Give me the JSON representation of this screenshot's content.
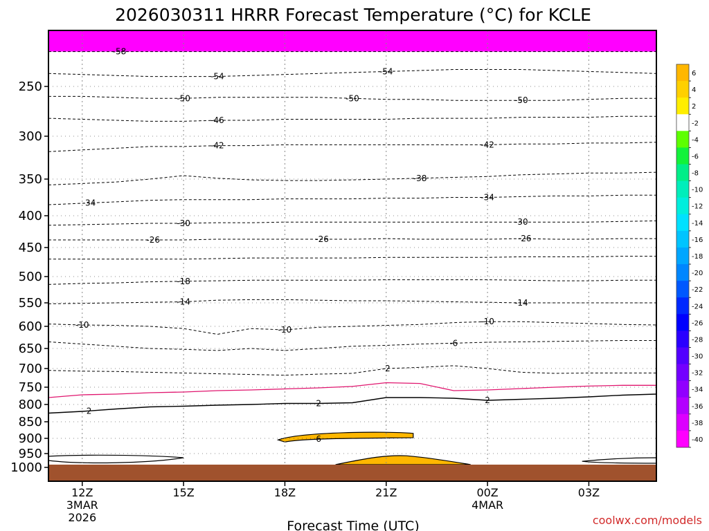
{
  "chart_data": {
    "type": "heatmap",
    "title": "2026030311 HRRR Forecast Temperature (°C) for KCLE",
    "xlabel": "Forecast Time (UTC)",
    "credit": "coolwx.com/models",
    "x_ticks": [
      {
        "hour": 0,
        "label": "12Z",
        "sub1": "3MAR",
        "sub2": "2026"
      },
      {
        "hour": 3,
        "label": "15Z",
        "sub1": "",
        "sub2": ""
      },
      {
        "hour": 6,
        "label": "18Z",
        "sub1": "",
        "sub2": ""
      },
      {
        "hour": 9,
        "label": "21Z",
        "sub1": "",
        "sub2": ""
      },
      {
        "hour": 12,
        "label": "00Z",
        "sub1": "4MAR",
        "sub2": ""
      },
      {
        "hour": 15,
        "label": "03Z",
        "sub1": "",
        "sub2": ""
      }
    ],
    "xlim": [
      -1,
      17
    ],
    "y_ticks": [
      250,
      300,
      350,
      400,
      450,
      500,
      550,
      600,
      650,
      700,
      750,
      800,
      850,
      900,
      950,
      1000
    ],
    "y_unit": "hPa",
    "colorbar": {
      "labels": [
        "6",
        "4",
        "2",
        "-2",
        "-4",
        "-6",
        "-8",
        "-10",
        "-12",
        "-14",
        "-16",
        "-18",
        "-20",
        "-22",
        "-24",
        "-26",
        "-28",
        "-30",
        "-32",
        "-34",
        "-36",
        "-38",
        "-40"
      ],
      "colors": [
        "#ffb700",
        "#ffd000",
        "#ffee00",
        "#ffffff",
        "#5dff00",
        "#12f23a",
        "#00ee88",
        "#00eebb",
        "#00eedd",
        "#00e1ff",
        "#00c4ff",
        "#00a6ff",
        "#0086ff",
        "#0058ff",
        "#0028ff",
        "#0000ff",
        "#2a00ff",
        "#5200ff",
        "#7300ff",
        "#9100ff",
        "#b300ff",
        "#dc00ff",
        "#ff00ff"
      ]
    },
    "contours": [
      {
        "value": -58,
        "pressures": [
          215,
          215,
          215,
          215,
          215,
          215,
          215,
          215,
          215,
          215,
          215,
          215,
          215,
          215,
          215,
          215,
          215,
          215,
          215
        ],
        "label_hours": [
          1.1
        ]
      },
      {
        "value": -54,
        "pressures": [
          237,
          238,
          239,
          240,
          240,
          240,
          239,
          238,
          237,
          236,
          235,
          234,
          233,
          233,
          233,
          234,
          235,
          236,
          237
        ],
        "label_hours": [
          4,
          9
        ]
      },
      {
        "value": -50,
        "pressures": [
          260,
          260,
          261,
          262,
          262,
          261,
          261,
          261,
          261,
          262,
          263,
          263,
          264,
          264,
          264,
          264,
          263,
          262,
          262
        ],
        "label_hours": [
          3,
          8,
          13
        ]
      },
      {
        "value": -46,
        "pressures": [
          282,
          283,
          284,
          285,
          285,
          284,
          284,
          283,
          283,
          283,
          283,
          282,
          282,
          282,
          281,
          281,
          281,
          280,
          280
        ],
        "label_hours": [
          4
        ]
      },
      {
        "value": -42,
        "pressures": [
          318,
          316,
          314,
          312,
          312,
          311,
          311,
          310,
          310,
          310,
          310,
          310,
          310,
          310,
          309,
          309,
          308,
          308,
          307
        ],
        "label_hours": [
          4,
          12
        ]
      },
      {
        "value": -38,
        "pressures": [
          358,
          356,
          354,
          350,
          346,
          349,
          351,
          352,
          352,
          351,
          350,
          349,
          348,
          347,
          345,
          344,
          343,
          343,
          342
        ],
        "label_hours": [
          10
        ]
      },
      {
        "value": -34,
        "pressures": [
          385,
          383,
          381,
          379,
          378,
          378,
          378,
          377,
          377,
          377,
          376,
          376,
          375,
          375,
          374,
          373,
          373,
          372,
          372
        ],
        "label_hours": [
          0.2,
          12
        ]
      },
      {
        "value": -30,
        "pressures": [
          415,
          414,
          413,
          412,
          412,
          411,
          411,
          410,
          410,
          410,
          410,
          410,
          410,
          410,
          410,
          410,
          410,
          409,
          408
        ],
        "label_hours": [
          3,
          13
        ]
      },
      {
        "value": -26,
        "pressures": [
          438,
          438,
          438,
          438,
          438,
          437,
          437,
          437,
          437,
          437,
          436,
          437,
          437,
          437,
          436,
          437,
          437,
          436,
          436
        ],
        "label_hours": [
          2.1,
          7.1,
          13.1
        ]
      },
      {
        "value": -22,
        "pressures": [
          470,
          470,
          470,
          470,
          470,
          469,
          468,
          468,
          468,
          468,
          467,
          467,
          467,
          467,
          466,
          466,
          466,
          465,
          465
        ],
        "label_hours": []
      },
      {
        "value": -18,
        "pressures": [
          515,
          513,
          512,
          510,
          509,
          508,
          507,
          507,
          507,
          507,
          506,
          506,
          506,
          506,
          507,
          508,
          508,
          507,
          507
        ],
        "label_hours": [
          3
        ]
      },
      {
        "value": -14,
        "pressures": [
          552,
          551,
          550,
          549,
          548,
          545,
          544,
          544,
          545,
          546,
          546,
          547,
          548,
          549,
          550,
          550,
          550,
          550,
          550
        ],
        "label_hours": [
          3,
          13
        ]
      },
      {
        "value": -10,
        "pressures": [
          595,
          597,
          598,
          600,
          605,
          618,
          605,
          608,
          602,
          600,
          598,
          596,
          592,
          590,
          590,
          592,
          594,
          596,
          597
        ],
        "label_hours": [
          0,
          6,
          12
        ]
      },
      {
        "value": -6,
        "pressures": [
          635,
          640,
          645,
          650,
          652,
          655,
          650,
          655,
          650,
          645,
          643,
          640,
          638,
          636,
          635,
          634,
          633,
          632,
          632
        ],
        "label_hours": [
          11
        ]
      },
      {
        "value": -2,
        "pressures": [
          705,
          707,
          708,
          710,
          712,
          714,
          716,
          718,
          715,
          713,
          700,
          697,
          693,
          700,
          710,
          713,
          712,
          712,
          712
        ],
        "label_hours": [
          9
        ]
      },
      {
        "value": 2,
        "pressures": [
          825,
          820,
          813,
          807,
          805,
          802,
          800,
          797,
          797,
          795,
          780,
          780,
          782,
          788,
          785,
          782,
          778,
          773,
          770
        ],
        "label_hours": [
          0.2,
          7,
          12
        ]
      },
      {
        "value": 6,
        "pressures": [],
        "label_hours": [
          7
        ]
      }
    ],
    "zero_line": {
      "value": 0,
      "pressures": [
        780,
        772,
        770,
        766,
        764,
        760,
        758,
        755,
        752,
        748,
        738,
        740,
        760,
        758,
        754,
        750,
        747,
        745,
        745
      ]
    },
    "surface_pressure": 990
  }
}
